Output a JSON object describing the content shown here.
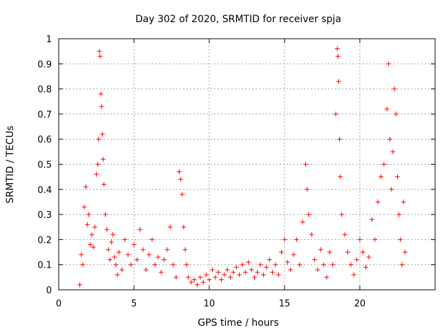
{
  "chart_data": {
    "type": "scatter",
    "title": "Day 302 of 2020, SRMTID for receiver spja",
    "xlabel": "GPS time / hours",
    "ylabel": "SRMTID / TECUs",
    "xlim": [
      0,
      25
    ],
    "ylim": [
      0,
      1
    ],
    "xticks": [
      0,
      5,
      10,
      15,
      20
    ],
    "xtick_labels": [
      "0",
      "5",
      "10",
      "15",
      "20"
    ],
    "yticks": [
      0,
      0.1,
      0.2,
      0.3,
      0.4,
      0.5,
      0.6,
      0.7,
      0.8,
      0.9,
      1
    ],
    "ytick_labels": [
      "0",
      "0.1",
      "0.2",
      "0.3",
      "0.4",
      "0.5",
      "0.6",
      "0.7",
      "0.8",
      "0.9",
      "1"
    ],
    "grid": true,
    "marker": "+",
    "color": "#ff0000",
    "series": [
      {
        "name": "SRMTID",
        "points": [
          [
            1.4,
            0.02
          ],
          [
            1.5,
            0.14
          ],
          [
            1.6,
            0.1
          ],
          [
            1.7,
            0.33
          ],
          [
            1.8,
            0.41
          ],
          [
            1.9,
            0.26
          ],
          [
            2.0,
            0.3
          ],
          [
            2.1,
            0.18
          ],
          [
            2.2,
            0.22
          ],
          [
            2.3,
            0.17
          ],
          [
            2.4,
            0.25
          ],
          [
            2.5,
            0.46
          ],
          [
            2.6,
            0.5
          ],
          [
            2.65,
            0.6
          ],
          [
            2.7,
            0.95
          ],
          [
            2.75,
            0.93
          ],
          [
            2.8,
            0.78
          ],
          [
            2.85,
            0.73
          ],
          [
            2.9,
            0.62
          ],
          [
            2.95,
            0.52
          ],
          [
            3.0,
            0.42
          ],
          [
            3.1,
            0.3
          ],
          [
            3.2,
            0.24
          ],
          [
            3.3,
            0.16
          ],
          [
            3.4,
            0.12
          ],
          [
            3.5,
            0.19
          ],
          [
            3.6,
            0.22
          ],
          [
            3.7,
            0.13
          ],
          [
            3.8,
            0.1
          ],
          [
            3.9,
            0.06
          ],
          [
            4.0,
            0.15
          ],
          [
            4.2,
            0.08
          ],
          [
            4.4,
            0.2
          ],
          [
            4.6,
            0.14
          ],
          [
            4.8,
            0.1
          ],
          [
            5.0,
            0.18
          ],
          [
            5.2,
            0.12
          ],
          [
            5.4,
            0.24
          ],
          [
            5.6,
            0.16
          ],
          [
            5.8,
            0.08
          ],
          [
            6.0,
            0.14
          ],
          [
            6.2,
            0.2
          ],
          [
            6.4,
            0.1
          ],
          [
            6.6,
            0.13
          ],
          [
            6.8,
            0.07
          ],
          [
            7.0,
            0.12
          ],
          [
            7.2,
            0.16
          ],
          [
            7.4,
            0.25
          ],
          [
            7.6,
            0.1
          ],
          [
            7.8,
            0.05
          ],
          [
            8.0,
            0.47
          ],
          [
            8.1,
            0.44
          ],
          [
            8.2,
            0.38
          ],
          [
            8.3,
            0.25
          ],
          [
            8.4,
            0.16
          ],
          [
            8.5,
            0.1
          ],
          [
            8.6,
            0.05
          ],
          [
            8.8,
            0.03
          ],
          [
            9.0,
            0.04
          ],
          [
            9.2,
            0.02
          ],
          [
            9.4,
            0.05
          ],
          [
            9.6,
            0.03
          ],
          [
            9.8,
            0.06
          ],
          [
            10.0,
            0.04
          ],
          [
            10.2,
            0.08
          ],
          [
            10.4,
            0.05
          ],
          [
            10.6,
            0.07
          ],
          [
            10.8,
            0.04
          ],
          [
            11.0,
            0.06
          ],
          [
            11.2,
            0.08
          ],
          [
            11.4,
            0.05
          ],
          [
            11.6,
            0.07
          ],
          [
            11.8,
            0.09
          ],
          [
            12.0,
            0.06
          ],
          [
            12.2,
            0.1
          ],
          [
            12.4,
            0.07
          ],
          [
            12.6,
            0.11
          ],
          [
            12.8,
            0.08
          ],
          [
            13.0,
            0.05
          ],
          [
            13.2,
            0.07
          ],
          [
            13.4,
            0.1
          ],
          [
            13.6,
            0.06
          ],
          [
            13.8,
            0.09
          ],
          [
            14.0,
            0.12
          ],
          [
            14.2,
            0.07
          ],
          [
            14.4,
            0.1
          ],
          [
            14.6,
            0.06
          ],
          [
            14.8,
            0.15
          ],
          [
            15.0,
            0.2
          ],
          [
            15.2,
            0.11
          ],
          [
            15.4,
            0.08
          ],
          [
            15.6,
            0.14
          ],
          [
            15.8,
            0.2
          ],
          [
            16.0,
            0.1
          ],
          [
            16.2,
            0.27
          ],
          [
            16.4,
            0.5
          ],
          [
            16.5,
            0.4
          ],
          [
            16.6,
            0.3
          ],
          [
            16.8,
            0.22
          ],
          [
            17.0,
            0.12
          ],
          [
            17.2,
            0.08
          ],
          [
            17.4,
            0.16
          ],
          [
            17.6,
            0.1
          ],
          [
            17.8,
            0.05
          ],
          [
            18.0,
            0.15
          ],
          [
            18.2,
            0.1
          ],
          [
            18.4,
            0.7
          ],
          [
            18.5,
            0.96
          ],
          [
            18.55,
            0.93
          ],
          [
            18.6,
            0.83
          ],
          [
            18.65,
            0.6
          ],
          [
            18.7,
            0.45
          ],
          [
            18.8,
            0.3
          ],
          [
            19.0,
            0.22
          ],
          [
            19.2,
            0.15
          ],
          [
            19.4,
            0.1
          ],
          [
            19.6,
            0.06
          ],
          [
            19.8,
            0.12
          ],
          [
            20.0,
            0.2
          ],
          [
            20.2,
            0.15
          ],
          [
            20.4,
            0.09
          ],
          [
            20.6,
            0.13
          ],
          [
            20.8,
            0.28
          ],
          [
            21.0,
            0.2
          ],
          [
            21.2,
            0.35
          ],
          [
            21.4,
            0.45
          ],
          [
            21.6,
            0.5
          ],
          [
            21.8,
            0.72
          ],
          [
            21.9,
            0.9
          ],
          [
            22.0,
            0.6
          ],
          [
            22.1,
            0.4
          ],
          [
            22.2,
            0.55
          ],
          [
            22.3,
            0.8
          ],
          [
            22.4,
            0.7
          ],
          [
            22.5,
            0.45
          ],
          [
            22.6,
            0.3
          ],
          [
            22.7,
            0.2
          ],
          [
            22.8,
            0.1
          ],
          [
            22.9,
            0.35
          ],
          [
            23.0,
            0.15
          ]
        ]
      }
    ]
  }
}
